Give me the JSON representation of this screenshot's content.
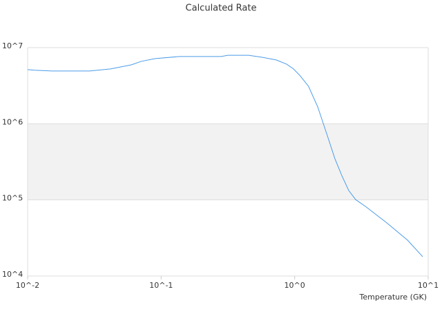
{
  "chart_data": {
    "type": "line",
    "title": "Calculated Rate",
    "x_label": "Temperature (GK)",
    "log_x": true,
    "log_y": true,
    "x": [
      0.01,
      0.0113,
      0.0152,
      0.0292,
      0.0418,
      0.0597,
      0.0713,
      0.0906,
      0.137,
      0.281,
      0.316,
      0.452,
      0.571,
      0.728,
      0.867,
      0.98,
      1.1,
      1.27,
      1.49,
      1.78,
      2.0,
      2.26,
      2.54,
      2.86,
      3.43,
      4.9,
      7.0,
      9.1
    ],
    "values": [
      5140000,
      5040000,
      4930000,
      4930000,
      5250000,
      5940000,
      6610000,
      7180000,
      7640000,
      7640000,
      7930000,
      7930000,
      7470000,
      6880000,
      6080000,
      5250000,
      4260000,
      3110000,
      1660000,
      650000,
      348000,
      207000,
      133000,
      101000,
      80700,
      49900,
      29600,
      17900
    ],
    "color": "#4a9be8",
    "xlim": [
      0.01,
      10
    ],
    "xticks": [
      {
        "value": 0.01,
        "label": "10^-2"
      },
      {
        "value": 0.1,
        "label": "10^-1"
      },
      {
        "value": 1,
        "label": "10^0"
      },
      {
        "value": 10,
        "label": "10^1"
      }
    ],
    "ylim": [
      10000,
      10000000
    ],
    "yticks": [
      {
        "value": 10000,
        "label": "10^4"
      },
      {
        "value": 100000,
        "label": "10^5"
      },
      {
        "value": 1000000,
        "label": "10^6"
      },
      {
        "value": 10000000,
        "label": "10^7"
      }
    ],
    "grid": true,
    "band_color": "#f2f2f2"
  }
}
